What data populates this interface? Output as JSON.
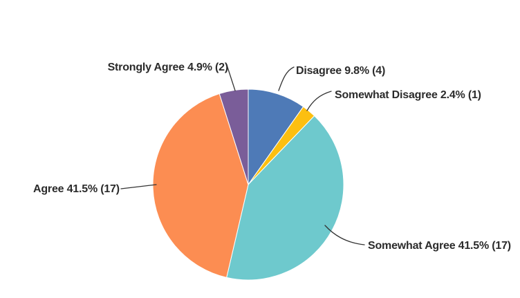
{
  "chart_data": {
    "type": "pie",
    "title": "",
    "legend_position": "none",
    "label_style": "external-with-leader-lines",
    "direction": "clockwise",
    "start_angle_deg": 0,
    "slices": [
      {
        "label": "Disagree",
        "percent": 9.8,
        "count": 4,
        "color": "#4e7ab7",
        "display": "Disagree 9.8% (4)"
      },
      {
        "label": "Somewhat Disagree",
        "percent": 2.4,
        "count": 1,
        "color": "#fcbf10",
        "display": "Somewhat Disagree 2.4% (1)"
      },
      {
        "label": "Somewhat Agree",
        "percent": 41.5,
        "count": 17,
        "color": "#6ec9cd",
        "display": "Somewhat Agree 41.5% (17)"
      },
      {
        "label": "Agree",
        "percent": 41.5,
        "count": 17,
        "color": "#fc8d52",
        "display": "Agree 41.5% (17)"
      },
      {
        "label": "Strongly Agree",
        "percent": 4.9,
        "count": 2,
        "color": "#7a5d99",
        "display": "Strongly Agree 4.9% (2)"
      }
    ],
    "style": {
      "text_color": "#2b2b2b",
      "leader_line_color": "#333333",
      "slice_separator_color": "#ffffff",
      "background_color": "#ffffff"
    }
  }
}
